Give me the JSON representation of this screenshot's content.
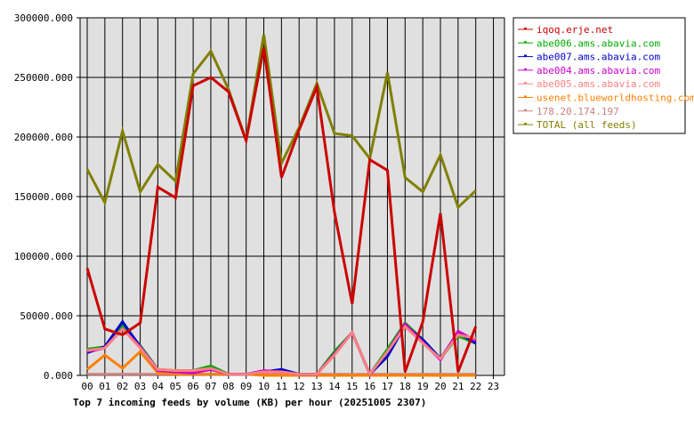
{
  "chart_data": {
    "type": "line",
    "title": "Top 7 incoming feeds by volume (KB) per hour (20251005 2307)",
    "xlabel": "",
    "ylabel": "",
    "ylim": [
      0,
      300000
    ],
    "grid": true,
    "legend_position": "right",
    "y_ticks": [
      "0.000",
      "50000.000",
      "100000.000",
      "150000.000",
      "200000.000",
      "250000.000",
      "300000.000"
    ],
    "y_tick_values": [
      0,
      50000,
      100000,
      150000,
      200000,
      250000,
      300000
    ],
    "categories": [
      "00",
      "01",
      "02",
      "03",
      "04",
      "05",
      "06",
      "07",
      "08",
      "09",
      "10",
      "11",
      "12",
      "13",
      "14",
      "15",
      "16",
      "17",
      "18",
      "19",
      "20",
      "21",
      "22",
      "23"
    ],
    "series": [
      {
        "name": "iqoq.erje.net",
        "color": "#cc0000",
        "values": [
          90000,
          39000,
          34000,
          44000,
          158000,
          149000,
          243000,
          250000,
          238000,
          197000,
          275000,
          166000,
          206000,
          242000,
          137000,
          60000,
          181000,
          172000,
          3000,
          45000,
          136000,
          3000,
          41000
        ]
      },
      {
        "name": "abe006.ams.abavia.com",
        "color": "#00aa00",
        "values": [
          22000,
          24000,
          42000,
          25000,
          5000,
          4000,
          4000,
          8000,
          1000,
          1000,
          3000,
          4000,
          1000,
          1000,
          20000,
          36000,
          1000,
          22000,
          44000,
          30000,
          14000,
          33000,
          27000
        ]
      },
      {
        "name": "abe007.ams.abavia.com",
        "color": "#0000cc",
        "values": [
          19000,
          24000,
          45000,
          24000,
          5000,
          3000,
          3000,
          6000,
          1000,
          1000,
          3000,
          5000,
          1000,
          1000,
          18000,
          36000,
          1000,
          16000,
          42000,
          30000,
          14000,
          36000,
          27000
        ]
      },
      {
        "name": "abe004.ams.abavia.com",
        "color": "#cc00cc",
        "values": [
          20000,
          23000,
          39000,
          24000,
          4000,
          3000,
          2000,
          5000,
          1000,
          1000,
          4000,
          3000,
          1000,
          1000,
          18000,
          36000,
          1000,
          20000,
          43000,
          28000,
          13000,
          37000,
          29000
        ]
      },
      {
        "name": "abe005.ams.abavia.com",
        "color": "#ff8080",
        "values": [
          21000,
          23000,
          39000,
          23000,
          5000,
          4000,
          4000,
          6000,
          1000,
          1000,
          3000,
          3000,
          1000,
          1000,
          17000,
          36000,
          1000,
          20000,
          41000,
          27000,
          14000,
          34000,
          31000
        ]
      },
      {
        "name": "usenet.blueworldhosting.com",
        "color": "#ff8000",
        "values": [
          5000,
          17000,
          6000,
          20000,
          2000,
          1000,
          1000,
          1000,
          1000,
          1000,
          0,
          0,
          0,
          0,
          0,
          0,
          0,
          0,
          0,
          0,
          0,
          0,
          0
        ]
      },
      {
        "name": "178.20.174.197",
        "color": "#cc8080",
        "values": [
          1000,
          1000,
          1000,
          1000,
          1000,
          1000,
          1000,
          1000,
          1000,
          1000,
          1000,
          1000,
          1000,
          1000,
          1000,
          1000,
          1000,
          1000,
          1000,
          1000,
          1000,
          1000,
          1000
        ]
      },
      {
        "name": "TOTAL (all feeds)",
        "color": "#808000",
        "values": [
          173000,
          145000,
          205000,
          154000,
          177000,
          163000,
          253000,
          272000,
          240000,
          197000,
          286000,
          178000,
          208000,
          245000,
          203000,
          201000,
          182000,
          254000,
          166000,
          154000,
          185000,
          141000,
          155000
        ]
      }
    ]
  },
  "colors": {
    "plot_bg": "#e0e0e0",
    "grid": "#000000",
    "axis": "#000000"
  }
}
